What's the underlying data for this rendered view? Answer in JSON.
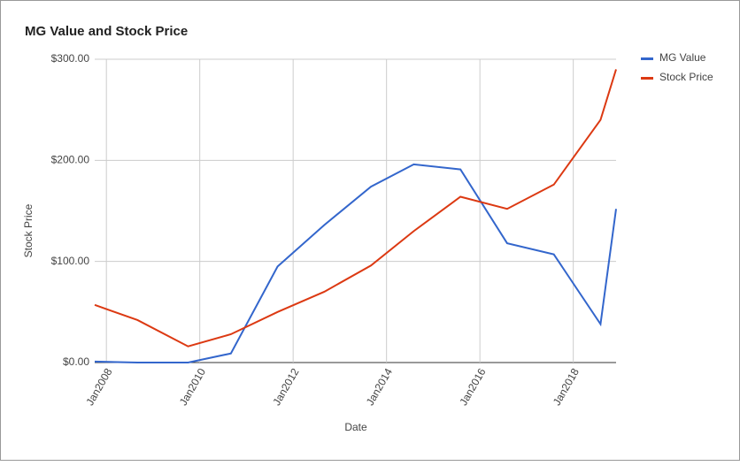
{
  "chart_data": {
    "type": "line",
    "title": "MG Value and Stock Price",
    "x_label": "Date",
    "y_label": "Stock Price",
    "x": [
      "2007-10",
      "2008-09",
      "2009-10",
      "2010-09",
      "2011-09",
      "2012-09",
      "2013-09",
      "2014-08",
      "2015-08",
      "2016-08",
      "2017-08",
      "2018-08",
      "2018-12"
    ],
    "series": [
      {
        "name": "MG Value",
        "color": "#3366cc",
        "values": [
          1,
          0,
          0,
          9,
          95,
          136,
          174,
          196,
          191,
          118,
          107,
          38,
          152
        ]
      },
      {
        "name": "Stock Price",
        "color": "#dc3912",
        "values": [
          57,
          42,
          16,
          28,
          50,
          70,
          96,
          130,
          164,
          152,
          176,
          240,
          290
        ]
      }
    ],
    "xlim": [
      "2007-10",
      "2018-12"
    ],
    "xticks": [
      {
        "value": "2008-01",
        "label": "Jan2008"
      },
      {
        "value": "2010-01",
        "label": "Jan2010"
      },
      {
        "value": "2012-01",
        "label": "Jan2012"
      },
      {
        "value": "2014-01",
        "label": "Jan2014"
      },
      {
        "value": "2016-01",
        "label": "Jan2016"
      },
      {
        "value": "2018-01",
        "label": "Jan2018"
      }
    ],
    "ylim": [
      0,
      300
    ],
    "yticks": [
      {
        "value": 0,
        "label": "$0.00"
      },
      {
        "value": 100,
        "label": "$100.00"
      },
      {
        "value": 200,
        "label": "$200.00"
      },
      {
        "value": 300,
        "label": "$300.00"
      }
    ],
    "grid": true,
    "legend": "right"
  }
}
